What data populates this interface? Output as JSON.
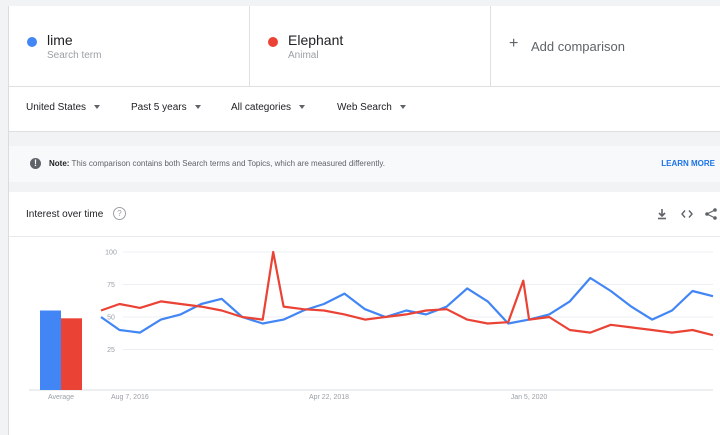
{
  "compare": {
    "terms": [
      {
        "name": "lime",
        "type": "Search term",
        "color": "#4285f4"
      },
      {
        "name": "Elephant",
        "type": "Animal",
        "color": "#ea4335"
      }
    ],
    "add_label": "Add comparison",
    "add_symbol": "+"
  },
  "filters": {
    "region": "United States",
    "period": "Past 5 years",
    "category": "All categories",
    "property": "Web Search"
  },
  "note": {
    "bold": "Note:",
    "text": " This comparison contains both Search terms and Topics, which are measured differently.",
    "link": "LEARN MORE"
  },
  "card": {
    "title": "Interest over time",
    "help": "?",
    "average_label": "Average"
  },
  "chart_data": {
    "type": "line",
    "y_ticks": [
      25,
      50,
      75,
      100
    ],
    "ylim": [
      0,
      100
    ],
    "x_tick_labels": [
      "Aug 7, 2016",
      "Apr 22, 2018",
      "Jan 5, 2020"
    ],
    "x_range": [
      "2016-08-07",
      "2021-08-01"
    ],
    "averages": [
      {
        "name": "lime",
        "value": 55
      },
      {
        "name": "Elephant",
        "value": 49
      }
    ],
    "series": [
      {
        "name": "lime",
        "color": "#4285f4",
        "x": [
          "2016-08-07",
          "2016-10-01",
          "2016-12-01",
          "2017-02-01",
          "2017-04-01",
          "2017-06-01",
          "2017-08-01",
          "2017-10-01",
          "2017-12-01",
          "2018-02-01",
          "2018-04-01",
          "2018-06-01",
          "2018-08-01",
          "2018-10-01",
          "2018-12-01",
          "2019-02-01",
          "2019-04-01",
          "2019-06-01",
          "2019-08-01",
          "2019-10-01",
          "2019-12-01",
          "2020-02-01",
          "2020-04-01",
          "2020-06-01",
          "2020-08-01",
          "2020-10-01",
          "2020-12-01",
          "2021-02-01",
          "2021-04-01",
          "2021-06-01",
          "2021-08-01"
        ],
        "values": [
          50,
          40,
          38,
          48,
          52,
          60,
          64,
          50,
          45,
          48,
          55,
          60,
          68,
          56,
          50,
          55,
          52,
          58,
          72,
          62,
          45,
          48,
          52,
          62,
          80,
          70,
          58,
          48,
          55,
          70,
          66
        ]
      },
      {
        "name": "Elephant",
        "color": "#ea4335",
        "x": [
          "2016-08-07",
          "2016-10-01",
          "2016-12-01",
          "2017-02-01",
          "2017-04-01",
          "2017-06-01",
          "2017-08-01",
          "2017-10-01",
          "2017-12-01",
          "2018-01-01",
          "2018-02-01",
          "2018-04-01",
          "2018-06-01",
          "2018-08-01",
          "2018-10-01",
          "2018-12-01",
          "2019-02-01",
          "2019-04-01",
          "2019-06-01",
          "2019-08-01",
          "2019-10-01",
          "2019-12-01",
          "2020-01-15",
          "2020-02-01",
          "2020-04-01",
          "2020-06-01",
          "2020-08-01",
          "2020-10-01",
          "2020-12-01",
          "2021-02-01",
          "2021-04-01",
          "2021-06-01",
          "2021-08-01"
        ],
        "values": [
          55,
          60,
          57,
          62,
          60,
          58,
          55,
          50,
          48,
          100,
          58,
          56,
          55,
          52,
          48,
          50,
          52,
          55,
          56,
          48,
          45,
          46,
          78,
          48,
          50,
          40,
          38,
          44,
          42,
          40,
          38,
          40,
          36
        ]
      }
    ]
  }
}
